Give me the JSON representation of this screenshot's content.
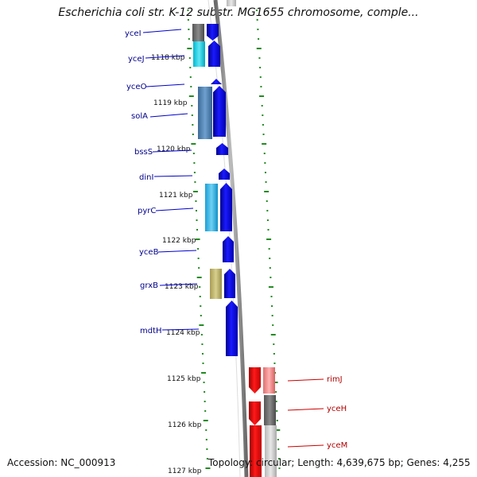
{
  "title": "Escherichia coli str. K-12 substr. MG1655 chromosome, comple...",
  "footer": {
    "accession": "Accession: NC_000913",
    "topology": "Topology: circular; Length: 4,639,675 bp; Genes: 4,255"
  },
  "colors": {
    "forward_gene": "#0000ee",
    "reverse_gene": "#ee0000",
    "backbone": "#888888",
    "tick": "#228b22",
    "forward_label": "#00008b",
    "reverse_label": "#b00000"
  },
  "position_ticks_kbp": [
    {
      "label": "1118 kbp",
      "kbp": 1118
    },
    {
      "label": "1119 kbp",
      "kbp": 1119
    },
    {
      "label": "1120 kbp",
      "kbp": 1120
    },
    {
      "label": "1121 kbp",
      "kbp": 1121
    },
    {
      "label": "1122 kbp",
      "kbp": 1122
    },
    {
      "label": "1123 kbp",
      "kbp": 1123
    },
    {
      "label": "1124 kbp",
      "kbp": 1124
    },
    {
      "label": "1125 kbp",
      "kbp": 1125
    },
    {
      "label": "1126 kbp",
      "kbp": 1126
    },
    {
      "label": "1127 kbp",
      "kbp": 1127
    }
  ],
  "forward_genes": [
    {
      "name": "yceI"
    },
    {
      "name": "yceJ"
    },
    {
      "name": "yceO"
    },
    {
      "name": "solA"
    },
    {
      "name": "bssS"
    },
    {
      "name": "dinI"
    },
    {
      "name": "pyrC"
    },
    {
      "name": "yceB"
    },
    {
      "name": "grxB"
    },
    {
      "name": "mdtH"
    }
  ],
  "reverse_genes": [
    {
      "name": "rimJ"
    },
    {
      "name": "yceH"
    },
    {
      "name": "yceM"
    }
  ]
}
